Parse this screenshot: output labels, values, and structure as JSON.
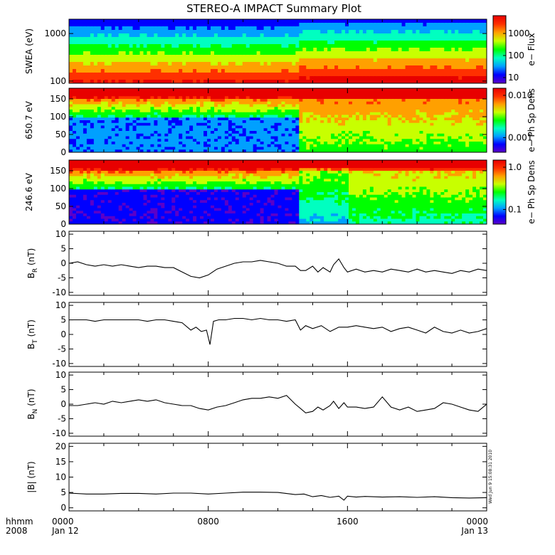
{
  "title": "STEREO-A IMPACT Summary Plot",
  "stamp": "Wed Jun  9 15:08:31 2010",
  "x_axis": {
    "corner_labels": [
      "hhmm",
      "2008"
    ],
    "ticks": [
      {
        "hour": 0,
        "line1": "0000",
        "line2": "Jan 12"
      },
      {
        "hour": 8,
        "line1": "0800",
        "line2": ""
      },
      {
        "hour": 16,
        "line1": "1600",
        "line2": ""
      },
      {
        "hour": 24,
        "line1": "0000",
        "line2": "Jan 13"
      }
    ],
    "range_hours": [
      0,
      24
    ]
  },
  "colors": {
    "line": "#000000",
    "colormap": [
      "#5b00c8",
      "#0000ff",
      "#00a0ff",
      "#00ffc0",
      "#00ff00",
      "#c8ff00",
      "#ffa000",
      "#ff3000",
      "#e80000"
    ]
  },
  "chart_data": [
    {
      "type": "heatmap",
      "ylabel": "SWEA (eV)",
      "ylog": true,
      "ylim": [
        90,
        2000
      ],
      "yticks": [
        "1000",
        "100"
      ],
      "colorbar": {
        "label": "e− Flux",
        "log": true,
        "ticks": [
          "1000",
          "100",
          "10"
        ]
      },
      "description_series": "flux higher at low energy; increase after 1300"
    },
    {
      "type": "heatmap",
      "ylabel": "650.7 eV",
      "ylim": [
        0,
        180
      ],
      "yticks": [
        "150",
        "100",
        "50",
        "0"
      ],
      "colorbar": {
        "label": "e− Ph Sp Dens",
        "log": true,
        "ticks": [
          "0.010",
          "0.001"
        ]
      }
    },
    {
      "type": "heatmap",
      "ylabel": "246.6 eV",
      "ylim": [
        0,
        180
      ],
      "yticks": [
        "150",
        "100",
        "50",
        "0"
      ],
      "colorbar": {
        "label": "e− Ph Sp Dens",
        "log": true,
        "ticks": [
          "1.0",
          "0.1"
        ]
      }
    },
    {
      "type": "line",
      "ylabel_main": "B",
      "ylabel_sub": "R",
      "ylabel_unit": " (nT)",
      "ylim": [
        -11,
        11
      ],
      "yticks": [
        10,
        5,
        0,
        -5,
        -10
      ],
      "x": [
        0,
        0.5,
        1,
        1.5,
        2,
        2.5,
        3,
        3.5,
        4,
        4.5,
        5,
        5.5,
        6,
        6.5,
        7,
        7.5,
        8,
        8.5,
        9,
        9.5,
        10,
        10.5,
        11,
        11.5,
        12,
        12.5,
        13,
        13.3,
        13.6,
        14,
        14.3,
        14.6,
        15,
        15.2,
        15.5,
        15.8,
        16,
        16.5,
        17,
        17.5,
        18,
        18.5,
        19,
        19.5,
        20,
        20.5,
        21,
        21.5,
        22,
        22.5,
        23,
        23.5,
        24
      ],
      "y": [
        0,
        0.5,
        -0.5,
        -1,
        -0.5,
        -1,
        -0.5,
        -1,
        -1.5,
        -1,
        -1,
        -1.5,
        -1.5,
        -3,
        -4.5,
        -5,
        -4,
        -2,
        -1,
        0,
        0.5,
        0.5,
        1,
        0.5,
        0,
        -1,
        -1,
        -2.5,
        -2.5,
        -1,
        -3,
        -1.5,
        -3,
        -0.5,
        1.5,
        -1.5,
        -3,
        -2,
        -3,
        -2.5,
        -3,
        -2,
        -2.5,
        -3,
        -2,
        -3,
        -2.5,
        -3,
        -3.5,
        -2.5,
        -3,
        -2,
        -2.5
      ]
    },
    {
      "type": "line",
      "ylabel_main": "B",
      "ylabel_sub": "T",
      "ylabel_unit": " (nT)",
      "ylim": [
        -11,
        11
      ],
      "yticks": [
        10,
        5,
        0,
        -5,
        -10
      ],
      "x": [
        0,
        0.5,
        1,
        1.5,
        2,
        2.5,
        3,
        3.5,
        4,
        4.5,
        5,
        5.5,
        6,
        6.5,
        7,
        7.3,
        7.6,
        7.9,
        8.1,
        8.3,
        8.6,
        9,
        9.5,
        10,
        10.5,
        11,
        11.5,
        12,
        12.5,
        13,
        13.3,
        13.6,
        14,
        14.5,
        15,
        15.5,
        16,
        16.5,
        17,
        17.5,
        18,
        18.5,
        19,
        19.5,
        20,
        20.5,
        21,
        21.5,
        22,
        22.5,
        23,
        23.5,
        24
      ],
      "y": [
        5,
        5,
        5,
        4.5,
        5,
        5,
        5,
        5,
        5,
        4.5,
        5,
        5,
        4.5,
        4,
        1.5,
        2.5,
        1,
        1.5,
        -3.5,
        4.5,
        5,
        5,
        5.5,
        5.5,
        5,
        5.5,
        5,
        5,
        4.5,
        5,
        1.5,
        3,
        2,
        3,
        1,
        2.5,
        2.5,
        3,
        2.5,
        2,
        2.5,
        1,
        2,
        2.5,
        1.5,
        0.5,
        2.5,
        1,
        0.5,
        1.5,
        0.5,
        1,
        2
      ]
    },
    {
      "type": "line",
      "ylabel_main": "B",
      "ylabel_sub": "N",
      "ylabel_unit": " (nT)",
      "ylim": [
        -11,
        11
      ],
      "yticks": [
        10,
        5,
        0,
        -5,
        -10
      ],
      "x": [
        0,
        0.5,
        1,
        1.5,
        2,
        2.5,
        3,
        3.5,
        4,
        4.5,
        5,
        5.5,
        6,
        6.5,
        7,
        7.5,
        8,
        8.5,
        9,
        9.5,
        10,
        10.5,
        11,
        11.5,
        12,
        12.5,
        13,
        13.3,
        13.6,
        14,
        14.3,
        14.6,
        15,
        15.2,
        15.5,
        15.8,
        16,
        16.5,
        17,
        17.5,
        18,
        18.5,
        19,
        19.5,
        20,
        20.5,
        21,
        21.5,
        22,
        22.5,
        23,
        23.5,
        24
      ],
      "y": [
        -0.5,
        -0.5,
        0,
        0.5,
        0,
        1,
        0.5,
        1,
        1.5,
        1,
        1.5,
        0.5,
        0,
        -0.5,
        -0.5,
        -1.5,
        -2,
        -1,
        -0.5,
        0.5,
        1.5,
        2,
        2,
        2.5,
        2,
        3,
        0,
        -1.5,
        -3,
        -2.5,
        -1,
        -2,
        -0.5,
        1,
        -1.5,
        0.5,
        -1,
        -1,
        -1.5,
        -1,
        2.5,
        -1,
        -2,
        -1,
        -2.5,
        -2,
        -1.5,
        0.5,
        0,
        -1,
        -2,
        -2.5,
        0
      ]
    },
    {
      "type": "line",
      "ylabel_main": "|B|",
      "ylabel_sub": "",
      "ylabel_unit": " (nT)",
      "ylim": [
        -1,
        21
      ],
      "yticks": [
        20,
        15,
        10,
        5,
        0
      ],
      "x": [
        0,
        1,
        2,
        3,
        4,
        5,
        6,
        7,
        8,
        9,
        10,
        11,
        12,
        13,
        13.5,
        14,
        14.5,
        15,
        15.5,
        15.8,
        16,
        16.5,
        17,
        18,
        19,
        20,
        21,
        22,
        23,
        24
      ],
      "y": [
        4.8,
        4.5,
        4.5,
        4.7,
        4.7,
        4.5,
        4.8,
        4.8,
        4.5,
        4.8,
        5.1,
        5.1,
        5,
        4.3,
        4.5,
        3.6,
        4,
        3.4,
        3.8,
        2.5,
        3.8,
        3.5,
        3.7,
        3.5,
        3.6,
        3.4,
        3.6,
        3.3,
        3.2,
        3.3
      ]
    }
  ]
}
